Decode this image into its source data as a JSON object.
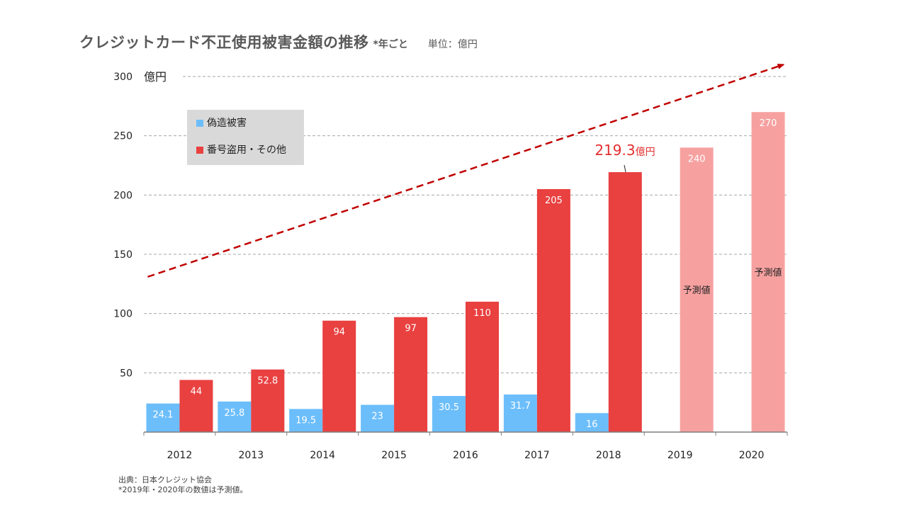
{
  "title": "クレジットカード不正使用被害金額の推移",
  "subtitle": "*年ごと",
  "unit_note": "単位：億円",
  "chart_data": {
    "type": "bar",
    "categories": [
      "2012",
      "2013",
      "2014",
      "2015",
      "2016",
      "2017",
      "2018",
      "2019",
      "2020"
    ],
    "series": [
      {
        "name": "偽造被害",
        "values": [
          24.1,
          25.8,
          19.5,
          23,
          30.5,
          31.7,
          16,
          null,
          null
        ],
        "labels": [
          "24.1",
          "25.8",
          "19.5",
          "23",
          "30.5",
          "31.7",
          "16",
          "",
          ""
        ],
        "color": "#6CBEFB"
      },
      {
        "name": "番号盗用・その他",
        "values": [
          44,
          52.8,
          94,
          97,
          110,
          205,
          219.3,
          240,
          270
        ],
        "labels": [
          "44",
          "52.8",
          "94",
          "97",
          "110",
          "205",
          "",
          "240",
          "270"
        ],
        "color": "#E94040",
        "forecast_color": "#F6A1A0",
        "forecast_from_index": 7
      }
    ],
    "forecast_label": "予測値",
    "ylim": [
      0,
      300
    ],
    "yticks": [
      50,
      100,
      150,
      200,
      250,
      300
    ],
    "ytick_labels": [
      "50",
      "100",
      "150",
      "200",
      "250",
      "300"
    ],
    "ylabel": "億円",
    "grid": true,
    "legend_position": "top-left",
    "callout": {
      "category_index": 6,
      "series_index": 1,
      "value_text": "219.3",
      "unit_text": "億円",
      "color": "#E42E2E"
    },
    "trend_arrow": {
      "color": "#C00000",
      "style": "dashed",
      "from": {
        "x": 2012,
        "y": 131
      },
      "to": {
        "x": 2020,
        "y": 310
      }
    }
  },
  "footnotes": [
    "出典：日本クレジット協会",
    "*2019年・2020年の数値は予測値。"
  ]
}
